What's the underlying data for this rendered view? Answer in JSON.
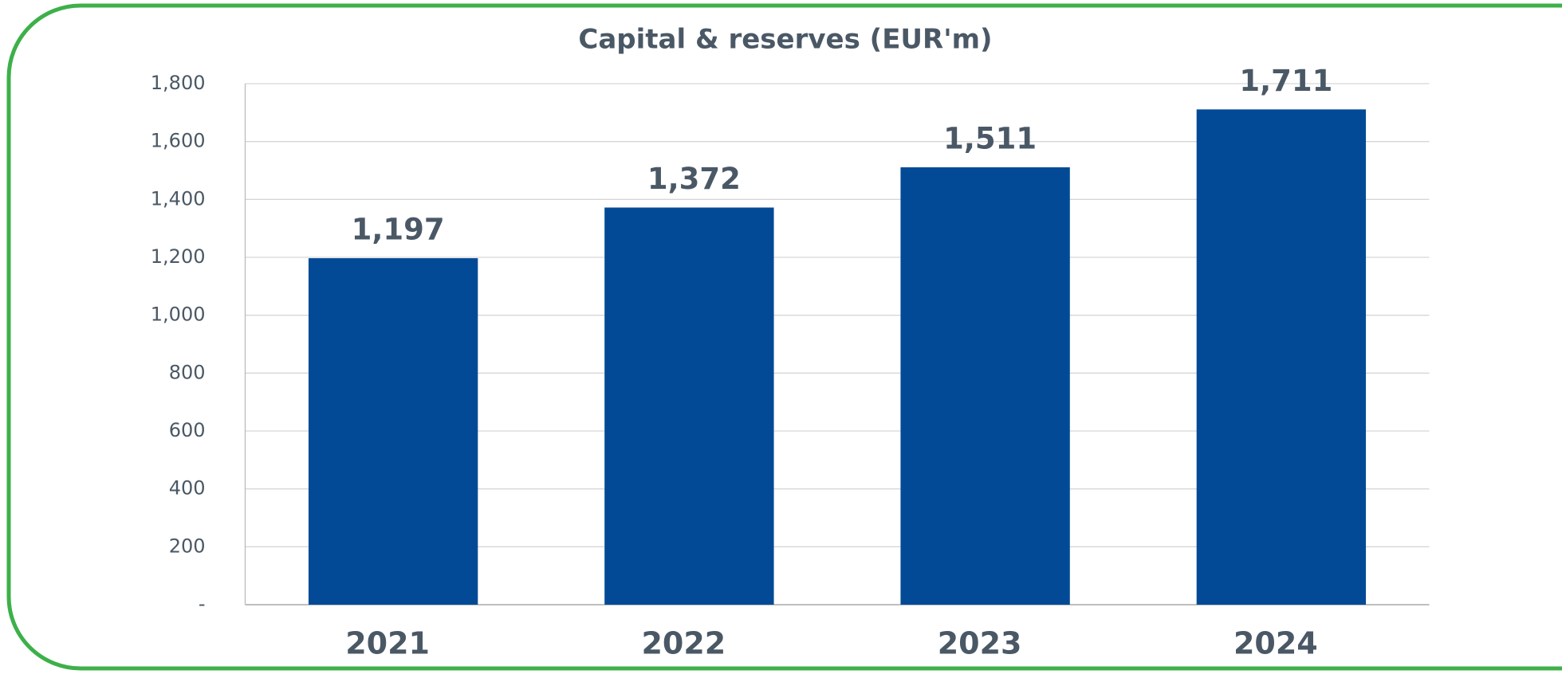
{
  "chart_data": {
    "type": "bar",
    "title": "Capital & reserves (EUR'm)",
    "categories": [
      "2021",
      "2022",
      "2023",
      "2024"
    ],
    "values": [
      1197,
      1372,
      1511,
      1711
    ],
    "value_labels": [
      "1,197",
      "1,372",
      "1,511",
      "1,711"
    ],
    "color": "#034a96",
    "ylim": [
      0,
      1800
    ],
    "yticks": [
      {
        "value": 0,
        "label": "-"
      },
      200,
      400,
      600,
      800,
      {
        "value": 1000,
        "label": "1,000"
      },
      {
        "value": 1200,
        "label": "1,200"
      },
      {
        "value": 1400,
        "label": "1,400"
      },
      {
        "value": 1600,
        "label": "1,600"
      },
      {
        "value": 1800,
        "label": "1,800"
      }
    ],
    "grid": true
  }
}
